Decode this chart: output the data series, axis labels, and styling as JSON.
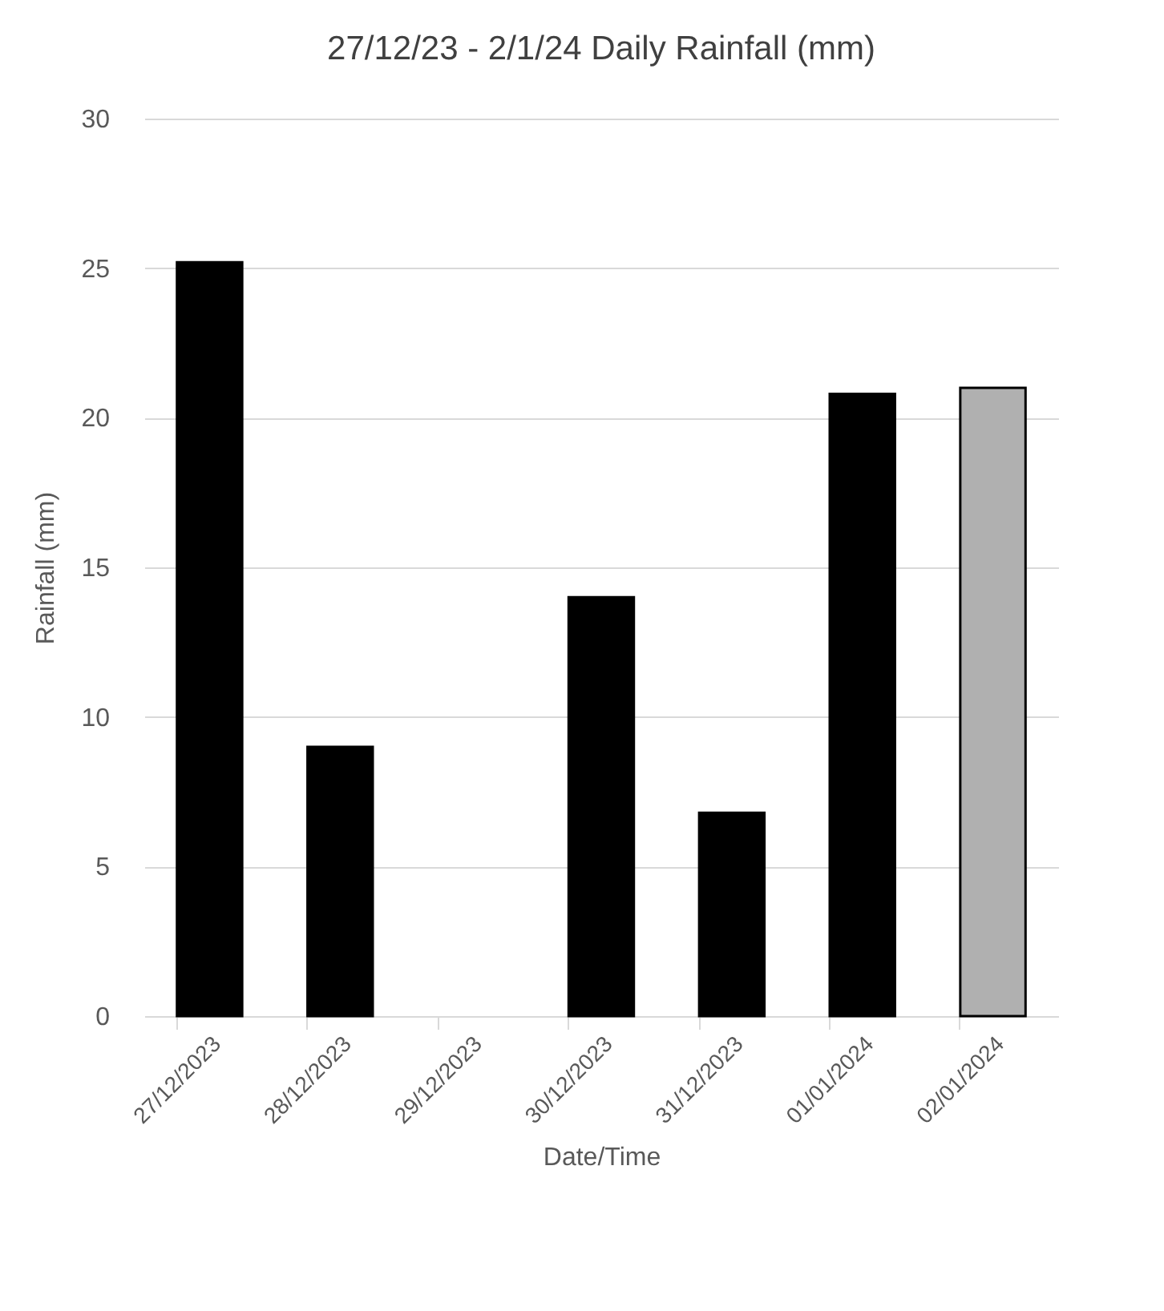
{
  "chart_data": {
    "type": "bar",
    "title": "27/12/23 - 2/1/24 Daily Rainfall (mm)",
    "xlabel": "Date/Time",
    "ylabel": "Rainfall (mm)",
    "categories": [
      "27/12/2023",
      "28/12/2023",
      "29/12/2023",
      "30/12/2023",
      "31/12/2023",
      "01/01/2024",
      "02/01/2024"
    ],
    "values": [
      25.2,
      9.0,
      0,
      14.0,
      6.8,
      20.8,
      21.0
    ],
    "colors": [
      "#000000",
      "#000000",
      "#000000",
      "#000000",
      "#000000",
      "#000000",
      "#b0b0b0"
    ],
    "ylim": [
      0,
      30
    ],
    "yticks": [
      0,
      5,
      10,
      15,
      20,
      25,
      30
    ],
    "grid": "y"
  }
}
